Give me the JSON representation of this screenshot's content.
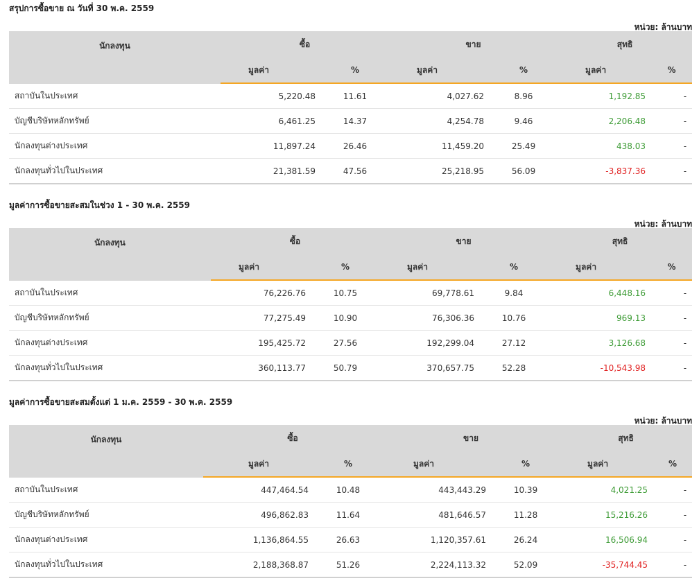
{
  "unit_label": "หน่วย: ล้านบาท",
  "headers": {
    "investor": "นักลงทุน",
    "buy": "ซื้อ",
    "sell": "ขาย",
    "net": "สุทธิ",
    "value": "มูลค่า",
    "pct": "%"
  },
  "colors": {
    "positive": "#3d9b35",
    "negative": "#e02020",
    "header_bg": "#d9d9d9",
    "accent": "#f5a623"
  },
  "sections": [
    {
      "title": "สรุปการซื้อขาย ณ วันที่ 30 พ.ค. 2559",
      "rows": [
        {
          "investor": "สถาบันในประเทศ",
          "buy_value": "5,220.48",
          "buy_pct": "11.61",
          "sell_value": "4,027.62",
          "sell_pct": "8.96",
          "net_value": "1,192.85",
          "net_pct": "-"
        },
        {
          "investor": "บัญชีบริษัทหลักทรัพย์",
          "buy_value": "6,461.25",
          "buy_pct": "14.37",
          "sell_value": "4,254.78",
          "sell_pct": "9.46",
          "net_value": "2,206.48",
          "net_pct": "-"
        },
        {
          "investor": "นักลงทุนต่างประเทศ",
          "buy_value": "11,897.24",
          "buy_pct": "26.46",
          "sell_value": "11,459.20",
          "sell_pct": "25.49",
          "net_value": "438.03",
          "net_pct": "-"
        },
        {
          "investor": "นักลงทุนทั่วไปในประเทศ",
          "buy_value": "21,381.59",
          "buy_pct": "47.56",
          "sell_value": "25,218.95",
          "sell_pct": "56.09",
          "net_value": "-3,837.36",
          "net_pct": "-"
        }
      ]
    },
    {
      "title": "มูลค่าการซื้อขายสะสมในช่วง 1 - 30 พ.ค. 2559",
      "rows": [
        {
          "investor": "สถาบันในประเทศ",
          "buy_value": "76,226.76",
          "buy_pct": "10.75",
          "sell_value": "69,778.61",
          "sell_pct": "9.84",
          "net_value": "6,448.16",
          "net_pct": "-"
        },
        {
          "investor": "บัญชีบริษัทหลักทรัพย์",
          "buy_value": "77,275.49",
          "buy_pct": "10.90",
          "sell_value": "76,306.36",
          "sell_pct": "10.76",
          "net_value": "969.13",
          "net_pct": "-"
        },
        {
          "investor": "นักลงทุนต่างประเทศ",
          "buy_value": "195,425.72",
          "buy_pct": "27.56",
          "sell_value": "192,299.04",
          "sell_pct": "27.12",
          "net_value": "3,126.68",
          "net_pct": "-"
        },
        {
          "investor": "นักลงทุนทั่วไปในประเทศ",
          "buy_value": "360,113.77",
          "buy_pct": "50.79",
          "sell_value": "370,657.75",
          "sell_pct": "52.28",
          "net_value": "-10,543.98",
          "net_pct": "-"
        }
      ]
    },
    {
      "title": "มูลค่าการซื้อขายสะสมตั้งแต่ 1 ม.ค. 2559 - 30 พ.ค. 2559",
      "rows": [
        {
          "investor": "สถาบันในประเทศ",
          "buy_value": "447,464.54",
          "buy_pct": "10.48",
          "sell_value": "443,443.29",
          "sell_pct": "10.39",
          "net_value": "4,021.25",
          "net_pct": "-"
        },
        {
          "investor": "บัญชีบริษัทหลักทรัพย์",
          "buy_value": "496,862.83",
          "buy_pct": "11.64",
          "sell_value": "481,646.57",
          "sell_pct": "11.28",
          "net_value": "15,216.26",
          "net_pct": "-"
        },
        {
          "investor": "นักลงทุนต่างประเทศ",
          "buy_value": "1,136,864.55",
          "buy_pct": "26.63",
          "sell_value": "1,120,357.61",
          "sell_pct": "26.24",
          "net_value": "16,506.94",
          "net_pct": "-"
        },
        {
          "investor": "นักลงทุนทั่วไปในประเทศ",
          "buy_value": "2,188,368.87",
          "buy_pct": "51.26",
          "sell_value": "2,224,113.32",
          "sell_pct": "52.09",
          "net_value": "-35,744.45",
          "net_pct": "-"
        }
      ]
    }
  ]
}
